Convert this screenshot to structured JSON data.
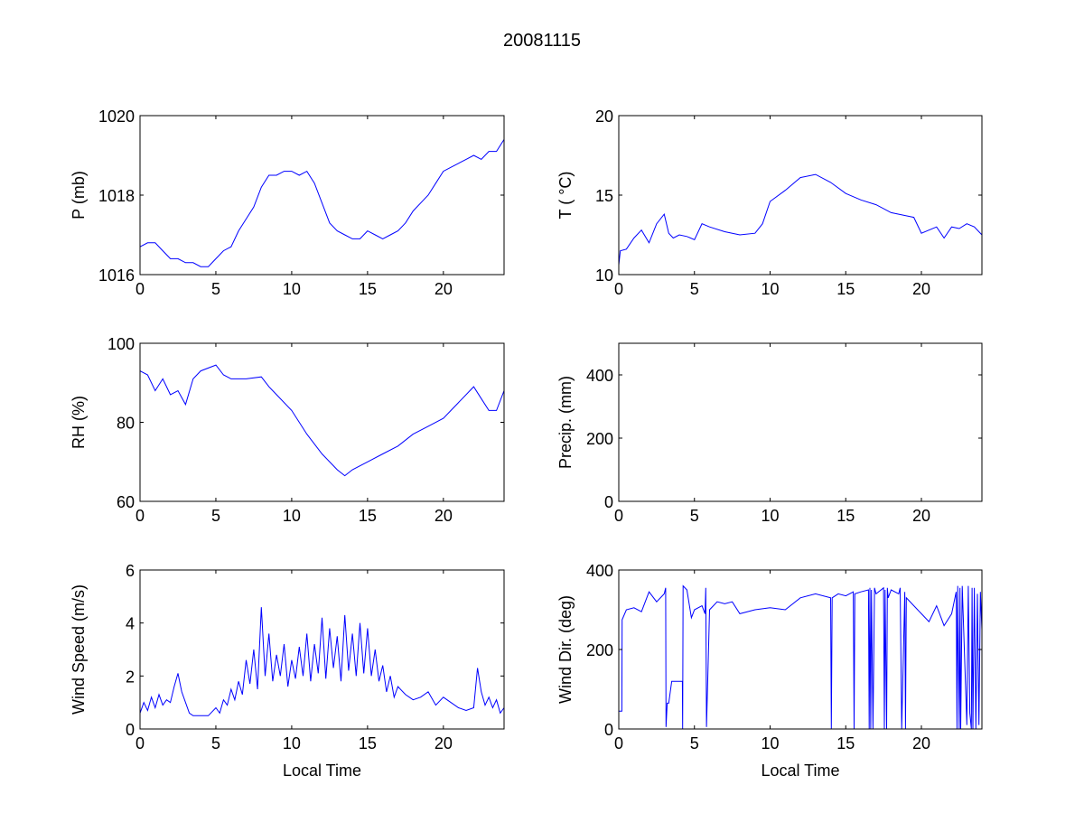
{
  "title": "20081115",
  "chart_data": [
    {
      "type": "line",
      "ylabel": "P (mb)",
      "xlabel": "",
      "xlim": [
        0,
        24
      ],
      "ylim": [
        1016,
        1020
      ],
      "xticks": [
        "0",
        "5",
        "10",
        "15",
        "20"
      ],
      "yticks": [
        "1016",
        "1018",
        "1020"
      ],
      "color": "#0000ff",
      "x": [
        0,
        0.5,
        1,
        1.5,
        2,
        2.5,
        3,
        3.5,
        4,
        4.5,
        5,
        5.5,
        6,
        6.5,
        7,
        7.5,
        8,
        8.5,
        9,
        9.5,
        10,
        10.5,
        11,
        11.5,
        12,
        12.5,
        13,
        13.5,
        14,
        14.5,
        15,
        15.5,
        16,
        16.5,
        17,
        17.5,
        18,
        18.5,
        19,
        19.5,
        20,
        20.5,
        21,
        21.5,
        22,
        22.5,
        23,
        23.5,
        24
      ],
      "y": [
        1016.7,
        1016.8,
        1016.8,
        1016.6,
        1016.4,
        1016.4,
        1016.3,
        1016.3,
        1016.2,
        1016.2,
        1016.4,
        1016.6,
        1016.7,
        1017.1,
        1017.4,
        1017.7,
        1018.2,
        1018.5,
        1018.5,
        1018.6,
        1018.6,
        1018.5,
        1018.6,
        1018.3,
        1017.8,
        1017.3,
        1017.1,
        1017.0,
        1016.9,
        1016.9,
        1017.1,
        1017.0,
        1016.9,
        1017.0,
        1017.1,
        1017.3,
        1017.6,
        1017.8,
        1018.0,
        1018.3,
        1018.6,
        1018.7,
        1018.8,
        1018.9,
        1019.0,
        1018.9,
        1019.1,
        1019.1,
        1019.4
      ]
    },
    {
      "type": "line",
      "ylabel": "T ( °C)",
      "xlabel": "",
      "xlim": [
        0,
        24
      ],
      "ylim": [
        10,
        20
      ],
      "xticks": [
        "0",
        "5",
        "10",
        "15",
        "20"
      ],
      "yticks": [
        "10",
        "15",
        "20"
      ],
      "color": "#0000ff",
      "x": [
        0,
        0.1,
        0.5,
        1,
        1.5,
        2,
        2.5,
        3,
        3.3,
        3.6,
        4,
        4.5,
        5,
        5.5,
        6,
        7,
        8,
        9,
        9.5,
        10,
        11,
        12,
        13,
        14,
        15,
        16,
        17,
        18,
        19,
        19.5,
        20,
        20.5,
        21,
        21.5,
        22,
        22.5,
        23,
        23.5,
        24
      ],
      "y": [
        10.6,
        11.5,
        11.6,
        12.3,
        12.8,
        12.0,
        13.2,
        13.8,
        12.6,
        12.3,
        12.5,
        12.4,
        12.2,
        13.2,
        13.0,
        12.7,
        12.5,
        12.6,
        13.2,
        14.6,
        15.3,
        16.1,
        16.3,
        15.8,
        15.1,
        14.7,
        14.4,
        13.9,
        13.7,
        13.6,
        12.6,
        12.8,
        13.0,
        12.3,
        13.0,
        12.9,
        13.2,
        13.0,
        12.5
      ]
    },
    {
      "type": "line",
      "ylabel": "RH (%)",
      "xlabel": "",
      "xlim": [
        0,
        24
      ],
      "ylim": [
        60,
        100
      ],
      "xticks": [
        "0",
        "5",
        "10",
        "15",
        "20"
      ],
      "yticks": [
        "60",
        "80",
        "100"
      ],
      "color": "#0000ff",
      "x": [
        0,
        0.5,
        1,
        1.5,
        2,
        2.5,
        3,
        3.5,
        4,
        5,
        5.5,
        6,
        7,
        8,
        8.5,
        9,
        10,
        11,
        12,
        13,
        13.5,
        14,
        15,
        16,
        17,
        18,
        19,
        20,
        21,
        22,
        22.5,
        23,
        23.5,
        24
      ],
      "y": [
        93,
        92,
        88,
        91,
        87,
        88,
        84.5,
        91,
        93,
        94.5,
        92,
        91,
        91,
        91.5,
        89,
        87,
        83,
        77,
        72,
        68,
        66.5,
        68,
        70,
        72,
        74,
        77,
        79,
        81,
        85,
        89,
        86,
        83,
        83,
        88
      ]
    },
    {
      "type": "line",
      "ylabel": "Precip. (mm)",
      "xlabel": "",
      "xlim": [
        0,
        24
      ],
      "ylim": [
        0,
        500
      ],
      "xticks": [
        "0",
        "5",
        "10",
        "15",
        "20"
      ],
      "yticks": [
        "0",
        "200",
        "400"
      ],
      "color": "#0000ff",
      "x": [
        0,
        24
      ],
      "y": [
        0,
        0
      ]
    },
    {
      "type": "line",
      "ylabel": "Wind Speed (m/s)",
      "xlabel": "Local Time",
      "xlim": [
        0,
        24
      ],
      "ylim": [
        0,
        6
      ],
      "xticks": [
        "0",
        "5",
        "10",
        "15",
        "20"
      ],
      "yticks": [
        "0",
        "2",
        "4",
        "6"
      ],
      "color": "#0000ff",
      "x": [
        0,
        0.25,
        0.5,
        0.75,
        1,
        1.25,
        1.5,
        1.75,
        2,
        2.25,
        2.5,
        2.75,
        3,
        3.25,
        3.5,
        4,
        4.5,
        5,
        5.25,
        5.5,
        5.75,
        6,
        6.25,
        6.5,
        6.75,
        7,
        7.25,
        7.5,
        7.75,
        8,
        8.25,
        8.5,
        8.75,
        9,
        9.25,
        9.5,
        9.75,
        10,
        10.25,
        10.5,
        10.75,
        11,
        11.25,
        11.5,
        11.75,
        12,
        12.25,
        12.5,
        12.75,
        13,
        13.25,
        13.5,
        13.75,
        14,
        14.25,
        14.5,
        14.75,
        15,
        15.25,
        15.5,
        15.75,
        16,
        16.25,
        16.5,
        16.75,
        17,
        17.5,
        18,
        18.5,
        19,
        19.5,
        20,
        20.5,
        21,
        21.5,
        22,
        22.25,
        22.5,
        22.75,
        23,
        23.25,
        23.5,
        23.75,
        24
      ],
      "y": [
        0.6,
        1.0,
        0.7,
        1.2,
        0.8,
        1.3,
        0.9,
        1.1,
        1.0,
        1.6,
        2.1,
        1.4,
        1.0,
        0.6,
        0.5,
        0.5,
        0.5,
        0.8,
        0.6,
        1.1,
        0.9,
        1.5,
        1.1,
        1.8,
        1.3,
        2.6,
        1.7,
        3.0,
        1.5,
        4.6,
        2.0,
        3.6,
        1.8,
        2.8,
        2.0,
        3.2,
        1.6,
        2.6,
        1.9,
        3.1,
        2.0,
        3.6,
        1.8,
        3.2,
        2.1,
        4.2,
        1.9,
        3.8,
        2.3,
        3.5,
        1.8,
        4.3,
        2.2,
        3.6,
        2.0,
        4.0,
        2.1,
        3.8,
        2.0,
        3.0,
        1.8,
        2.4,
        1.4,
        2.0,
        1.2,
        1.6,
        1.3,
        1.1,
        1.2,
        1.4,
        0.9,
        1.2,
        1.0,
        0.8,
        0.7,
        0.8,
        2.3,
        1.4,
        0.9,
        1.2,
        0.8,
        1.1,
        0.6,
        0.8
      ]
    },
    {
      "type": "line",
      "ylabel": "Wind Dir. (deg)",
      "xlabel": "Local Time",
      "xlim": [
        0,
        24
      ],
      "ylim": [
        0,
        400
      ],
      "xticks": [
        "0",
        "5",
        "10",
        "15",
        "20"
      ],
      "yticks": [
        "0",
        "200",
        "400"
      ],
      "color": "#0000ff",
      "x": [
        0,
        0.2,
        0.22,
        0.5,
        1,
        1.5,
        2,
        2.5,
        3,
        3.1,
        3.12,
        3.2,
        3.3,
        3.5,
        3.7,
        4.2,
        4.22,
        4.25,
        4.5,
        4.8,
        5,
        5.5,
        5.7,
        5.75,
        5.8,
        6,
        6.5,
        7,
        7.5,
        8,
        9,
        10,
        11,
        12,
        13,
        14,
        14.05,
        14.1,
        14.5,
        15,
        15.5,
        15.52,
        15.55,
        15.6,
        16,
        16.5,
        16.55,
        16.6,
        16.65,
        16.7,
        16.8,
        16.9,
        17,
        17.5,
        17.55,
        17.6,
        17.7,
        17.75,
        17.8,
        18,
        18.5,
        18.6,
        18.7,
        18.9,
        18.95,
        19,
        20,
        20.5,
        21,
        21.5,
        22,
        22.3,
        22.35,
        22.4,
        22.5,
        22.55,
        22.6,
        22.7,
        23,
        23.1,
        23.2,
        23.3,
        23.35,
        23.4,
        23.5,
        23.6,
        23.7,
        23.8,
        23.9,
        24
      ],
      "y": [
        45,
        45,
        275,
        300,
        305,
        295,
        345,
        320,
        340,
        355,
        5,
        65,
        65,
        120,
        120,
        120,
        0,
        360,
        350,
        280,
        300,
        310,
        290,
        355,
        5,
        300,
        320,
        315,
        320,
        290,
        300,
        305,
        300,
        330,
        340,
        330,
        0,
        330,
        340,
        335,
        345,
        200,
        0,
        340,
        345,
        350,
        0,
        355,
        0,
        350,
        0,
        355,
        340,
        355,
        0,
        350,
        0,
        355,
        330,
        350,
        340,
        355,
        0,
        345,
        0,
        330,
        290,
        270,
        310,
        260,
        290,
        345,
        0,
        360,
        0,
        355,
        0,
        360,
        10,
        360,
        40,
        0,
        355,
        0,
        355,
        0,
        340,
        10,
        345,
        250
      ]
    }
  ]
}
